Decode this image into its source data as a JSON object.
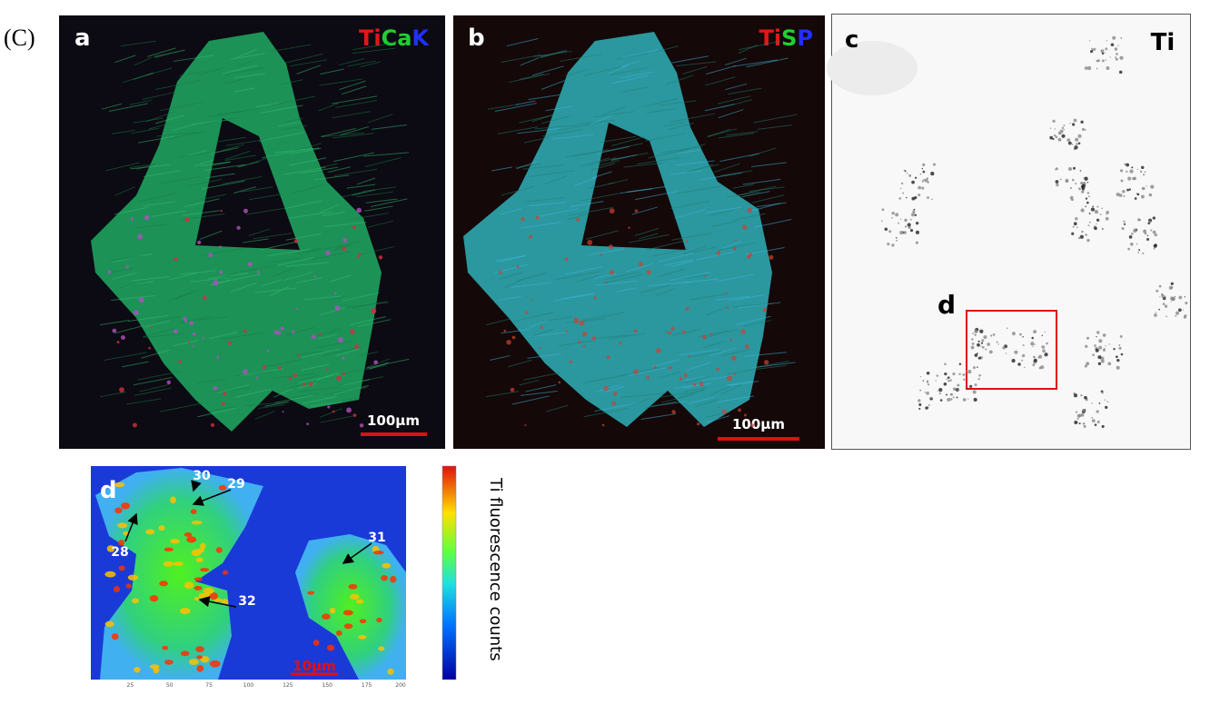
{
  "label": "(C)",
  "panels": {
    "a": {
      "letter": "a",
      "channels": [
        "Ti",
        "Ca",
        "K"
      ],
      "scale_bar": "100µm"
    },
    "b": {
      "letter": "b",
      "channels": [
        "Ti",
        "S",
        "P"
      ],
      "scale_bar": "100µm"
    },
    "c": {
      "letter": "c",
      "element": "Ti",
      "inset_letter": "d"
    },
    "d": {
      "letter": "d",
      "annotations": [
        "30",
        "29",
        "28",
        "31",
        "32"
      ],
      "scale_bar": "10µm",
      "x_ticks": [
        "25",
        "50",
        "75",
        "100",
        "125",
        "150",
        "175",
        "200"
      ],
      "colorbar_label": "Ti fluorescence counts"
    }
  }
}
